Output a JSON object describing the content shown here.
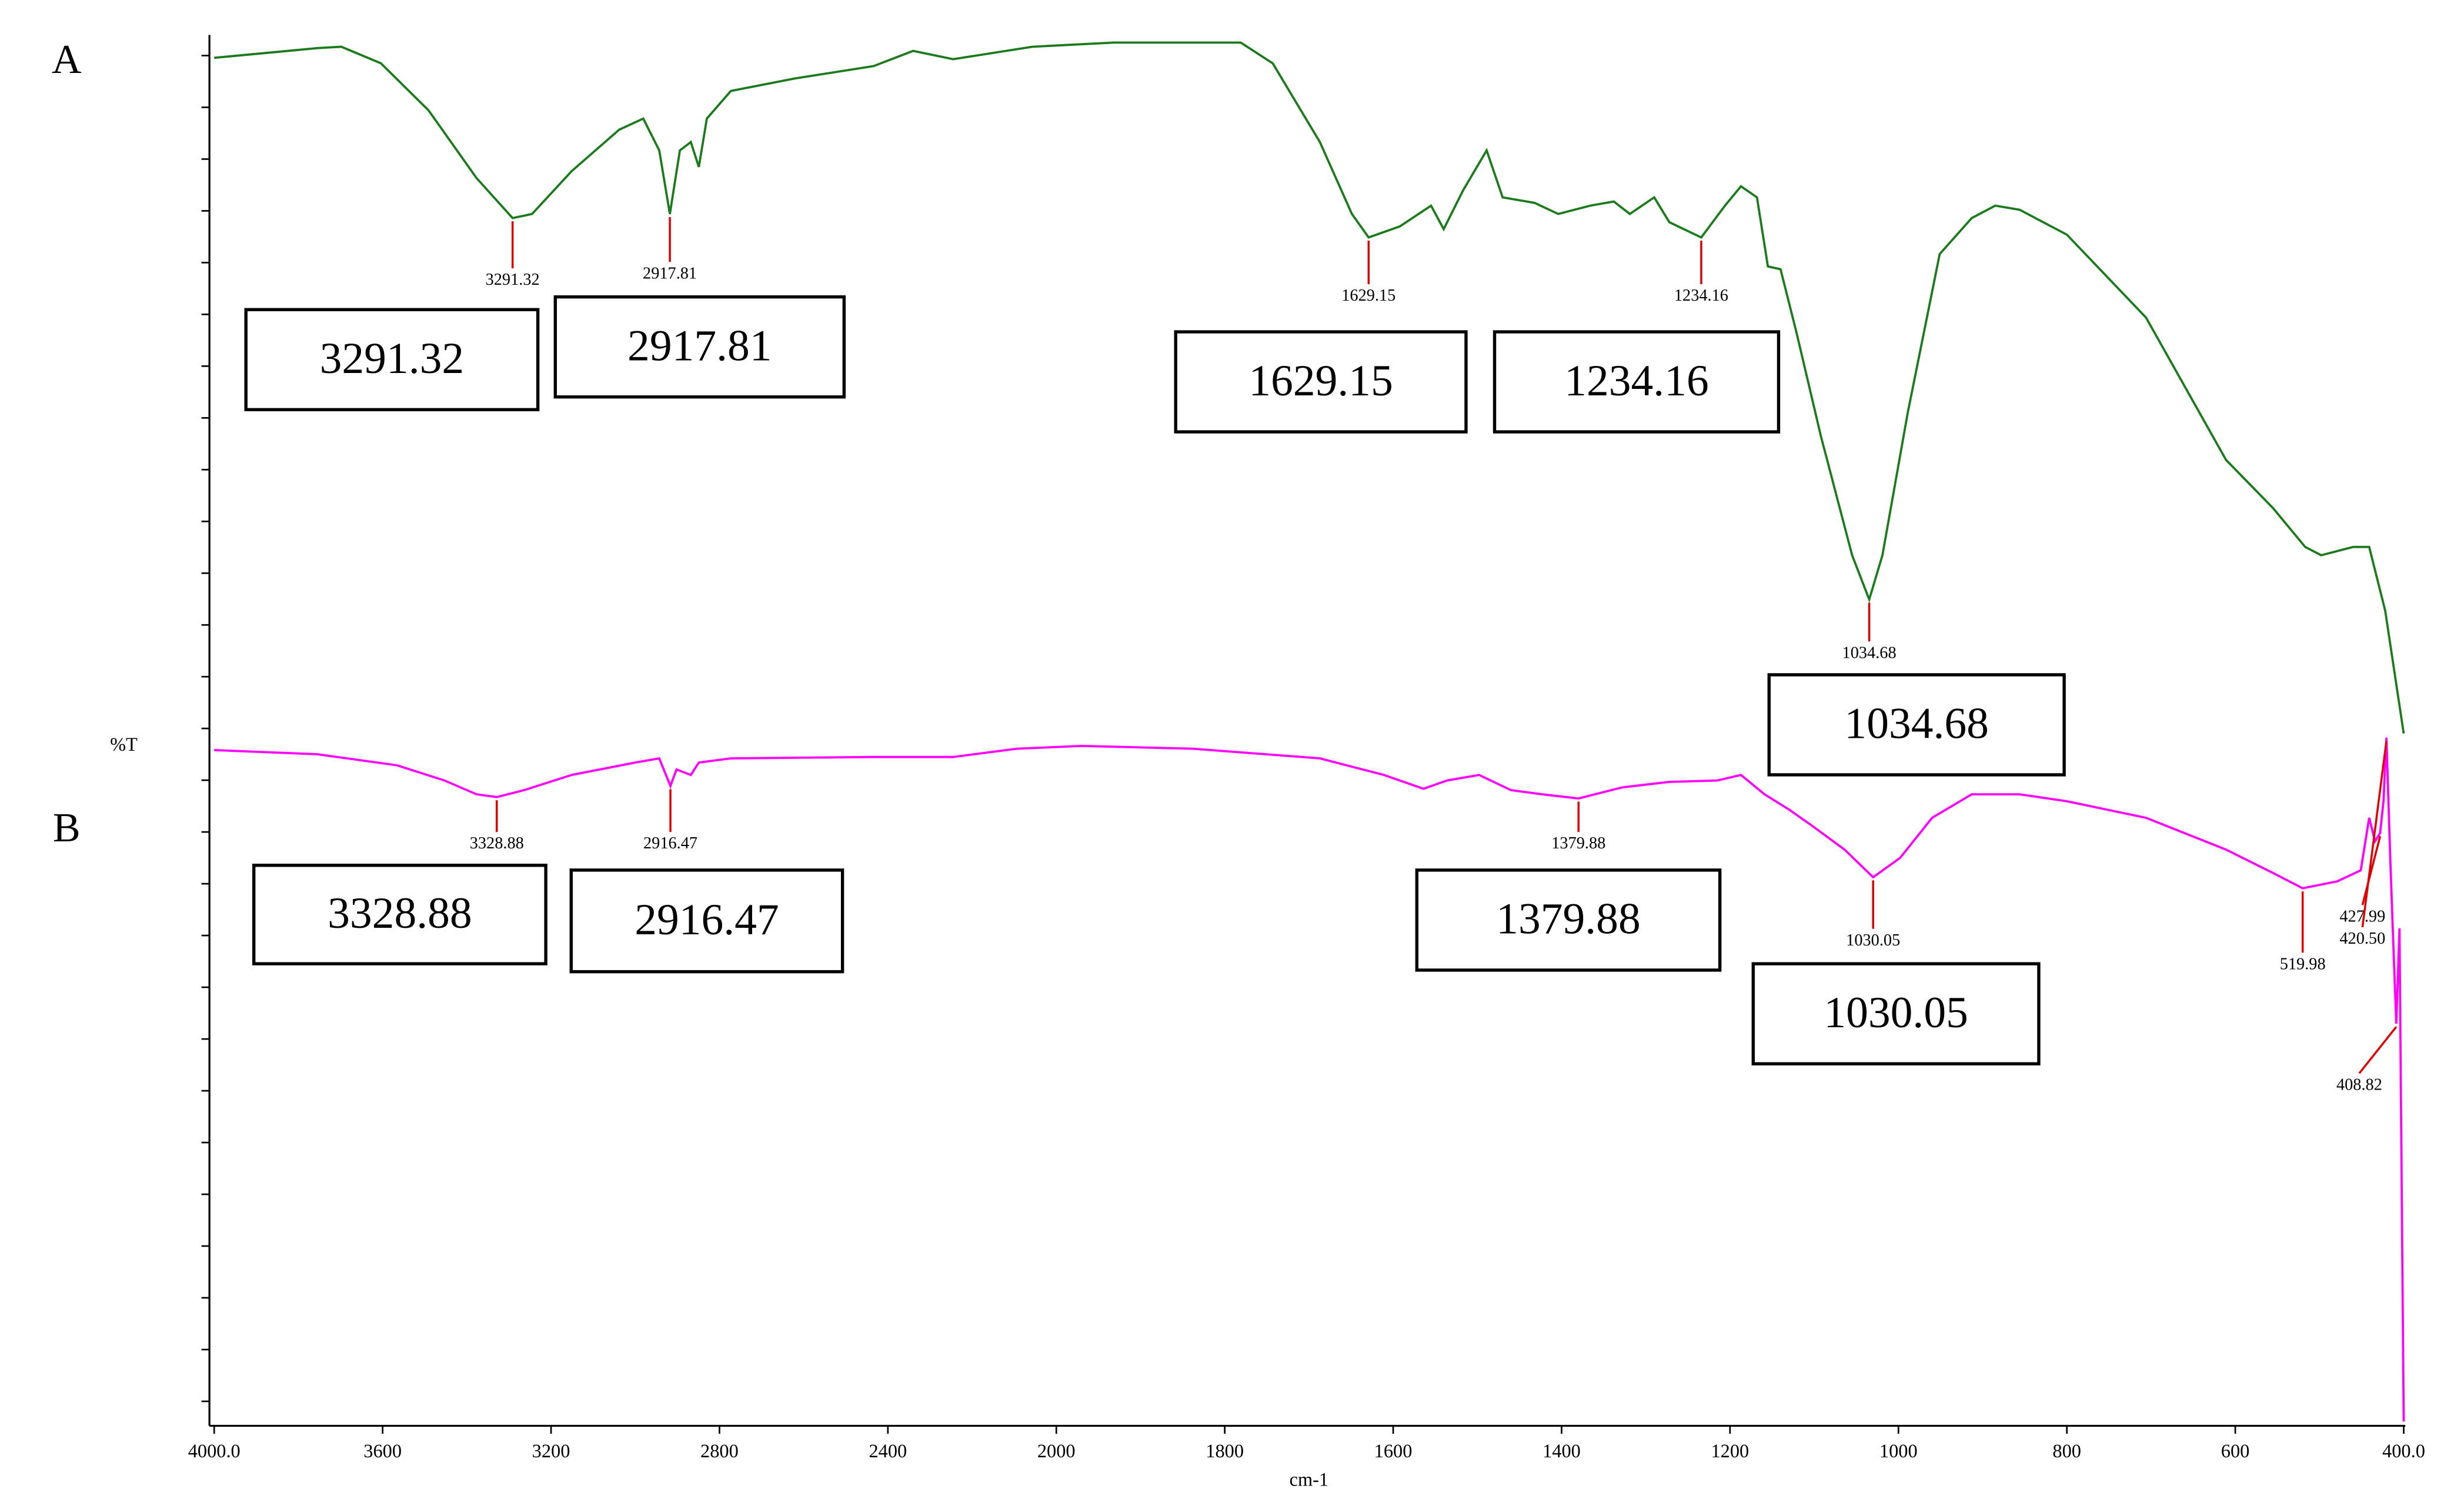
{
  "chart_data": {
    "type": "line",
    "x_label": "cm-1",
    "y_label": "%T",
    "xlim": [
      4000,
      400
    ],
    "ylim": [
      0,
      101
    ],
    "xticks": [
      {
        "value": 4000,
        "label": "4000.0"
      },
      3600,
      3200,
      2800,
      2400,
      2000,
      1800,
      1600,
      1400,
      1200,
      1000,
      800,
      600,
      {
        "value": 400,
        "label": "400.0"
      }
    ],
    "series": [
      {
        "name": "A",
        "color": "#1b7a1b",
        "x": [
          4000,
          3755,
          3698,
          3604,
          3491,
          3377,
          3291.32,
          3245,
          3151,
          3038,
          2981,
          2943,
          2917.81,
          2894,
          2868,
          2849,
          2830,
          2773,
          2622,
          2434,
          2340,
          2245,
          2057,
          1932,
          1781,
          1743,
          1687,
          1649,
          1629.15,
          1592,
          1555,
          1540,
          1517,
          1489,
          1470,
          1432,
          1404,
          1366,
          1338,
          1319,
          1290,
          1272,
          1234.16,
          1206,
          1187,
          1168,
          1155,
          1140,
          1121,
          1092,
          1055,
          1034.68,
          1019,
          989,
          951,
          913,
          885,
          856,
          800,
          706,
          611,
          555,
          517,
          498,
          460,
          441,
          422,
          400
        ],
        "values": [
          99.0,
          99.7,
          99.8,
          98.6,
          95.2,
          90.3,
          87.4,
          87.7,
          90.8,
          93.8,
          94.6,
          92.3,
          87.7,
          92.3,
          92.9,
          91.1,
          94.6,
          96.6,
          97.5,
          98.4,
          99.5,
          98.9,
          99.8,
          100.1,
          100.1,
          98.6,
          92.9,
          87.7,
          86.0,
          86.8,
          88.3,
          86.6,
          89.4,
          92.3,
          88.9,
          88.5,
          87.7,
          88.3,
          88.6,
          87.7,
          88.9,
          87.1,
          86.0,
          88.3,
          89.7,
          88.9,
          83.9,
          83.7,
          79.1,
          71.6,
          63.0,
          59.8,
          63.0,
          73.3,
          84.8,
          87.4,
          88.3,
          88.0,
          86.2,
          80.2,
          69.9,
          66.4,
          63.6,
          63.0,
          63.6,
          63.6,
          59.0,
          50.1
        ],
        "peaks": [
          3291.32,
          2917.81,
          1629.15,
          1234.16,
          1034.68
        ],
        "boxes": [
          3291.32,
          2917.81,
          1629.15,
          1234.16,
          1034.68
        ]
      },
      {
        "name": "B",
        "color": "#ff00ff",
        "x": [
          4000,
          3755,
          3566,
          3453,
          3377,
          3328.88,
          3264,
          3151,
          3000,
          2943,
          2916.47,
          2902,
          2868,
          2849,
          2773,
          2434,
          2245,
          2094,
          1970,
          1838,
          1687,
          1611,
          1564,
          1536,
          1498,
          1460,
          1423,
          1379.88,
          1328,
          1272,
          1215,
          1187,
          1159,
          1130,
          1102,
          1064,
          1030.05,
          998,
          960,
          913,
          856,
          800,
          706,
          611,
          555,
          519.98,
          479,
          451,
          441,
          434,
          427.99,
          424,
          420.5,
          416,
          412,
          408.82,
          405,
          400
        ],
        "values": [
          48.9,
          48.6,
          47.8,
          46.7,
          45.7,
          45.5,
          46.0,
          47.1,
          48.0,
          48.3,
          46.3,
          47.5,
          47.1,
          48.0,
          48.3,
          48.4,
          48.4,
          49.0,
          49.2,
          49.0,
          48.3,
          47.1,
          46.1,
          46.7,
          47.1,
          46.0,
          45.7,
          45.4,
          46.2,
          46.6,
          46.7,
          47.1,
          45.7,
          44.6,
          43.4,
          41.7,
          39.7,
          41.1,
          44.0,
          45.7,
          45.7,
          45.2,
          44.0,
          41.7,
          40.0,
          38.9,
          39.4,
          40.2,
          44.0,
          42.3,
          42.9,
          45.2,
          49.8,
          41.1,
          34.3,
          29.1,
          36.0,
          0.3
        ],
        "peaks": [
          3328.88,
          2916.47,
          1379.88,
          1030.05,
          519.98,
          427.99,
          {
            "value": 420.5,
            "label": "420.50"
          },
          408.82
        ],
        "boxes": [
          3328.88,
          2916.47,
          1379.88,
          1030.05
        ]
      }
    ]
  }
}
